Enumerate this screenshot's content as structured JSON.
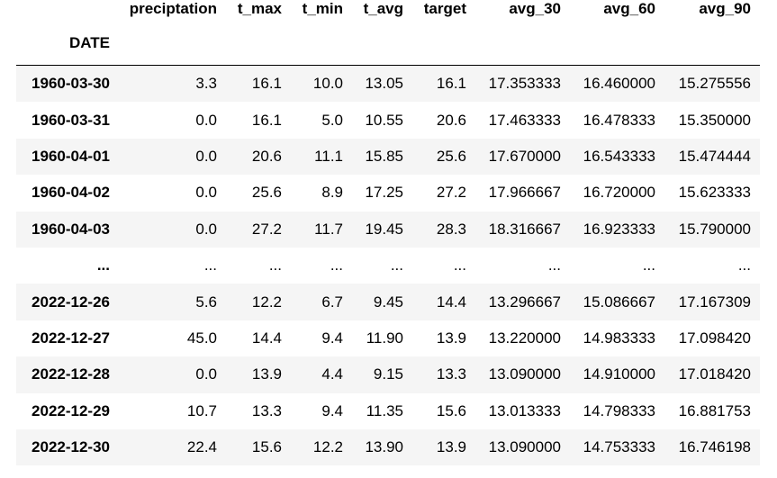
{
  "table": {
    "index_name": "DATE",
    "columns": [
      "preciptation",
      "t_max",
      "t_min",
      "t_avg",
      "target",
      "avg_30",
      "avg_60",
      "avg_90"
    ],
    "rows": [
      {
        "index": "1960-03-30",
        "cells": [
          "3.3",
          "16.1",
          "10.0",
          "13.05",
          "16.1",
          "17.353333",
          "16.460000",
          "15.275556"
        ]
      },
      {
        "index": "1960-03-31",
        "cells": [
          "0.0",
          "16.1",
          "5.0",
          "10.55",
          "20.6",
          "17.463333",
          "16.478333",
          "15.350000"
        ]
      },
      {
        "index": "1960-04-01",
        "cells": [
          "0.0",
          "20.6",
          "11.1",
          "15.85",
          "25.6",
          "17.670000",
          "16.543333",
          "15.474444"
        ]
      },
      {
        "index": "1960-04-02",
        "cells": [
          "0.0",
          "25.6",
          "8.9",
          "17.25",
          "27.2",
          "17.966667",
          "16.720000",
          "15.623333"
        ]
      },
      {
        "index": "1960-04-03",
        "cells": [
          "0.0",
          "27.2",
          "11.7",
          "19.45",
          "28.3",
          "18.316667",
          "16.923333",
          "15.790000"
        ]
      },
      {
        "index": "...",
        "cells": [
          "...",
          "...",
          "...",
          "...",
          "...",
          "...",
          "...",
          "..."
        ]
      },
      {
        "index": "2022-12-26",
        "cells": [
          "5.6",
          "12.2",
          "6.7",
          "9.45",
          "14.4",
          "13.296667",
          "15.086667",
          "17.167309"
        ]
      },
      {
        "index": "2022-12-27",
        "cells": [
          "45.0",
          "14.4",
          "9.4",
          "11.90",
          "13.9",
          "13.220000",
          "14.983333",
          "17.098420"
        ]
      },
      {
        "index": "2022-12-28",
        "cells": [
          "0.0",
          "13.9",
          "4.4",
          "9.15",
          "13.3",
          "13.090000",
          "14.910000",
          "17.018420"
        ]
      },
      {
        "index": "2022-12-29",
        "cells": [
          "10.7",
          "13.3",
          "9.4",
          "11.35",
          "15.6",
          "13.013333",
          "14.798333",
          "16.881753"
        ]
      },
      {
        "index": "2022-12-30",
        "cells": [
          "22.4",
          "15.6",
          "12.2",
          "13.90",
          "13.9",
          "13.090000",
          "14.753333",
          "16.746198"
        ]
      }
    ]
  }
}
